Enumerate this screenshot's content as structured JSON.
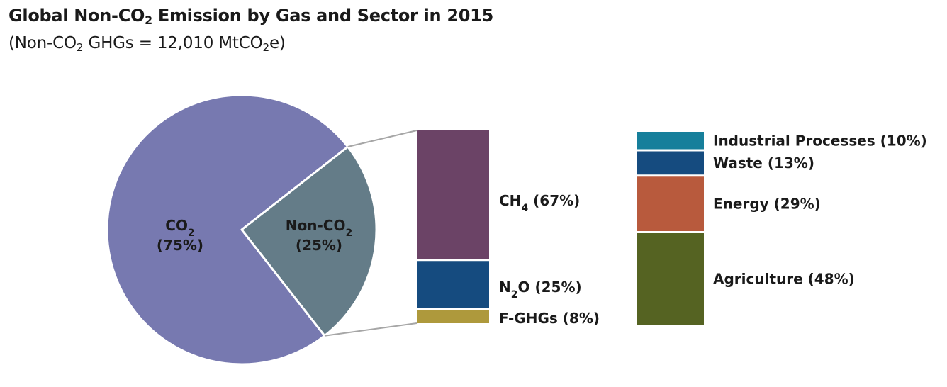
{
  "title": {
    "pre": "Global Non-CO",
    "sub": "2",
    "post": " Emission by Gas and Sector in 2015"
  },
  "subtitle": {
    "a": "(Non-CO",
    "a_sub": "2",
    "b": " GHGs = 12,010 MtCO",
    "b_sub": "2",
    "c": "e)"
  },
  "chart_data": [
    {
      "type": "pie",
      "slices": [
        {
          "name": "CO",
          "sub": "2",
          "pct_label": "(75%)",
          "value": 75,
          "color": "#7779b0"
        },
        {
          "name": "Non-CO",
          "sub": "2",
          "pct_label": "(25%)",
          "value": 25,
          "color": "#647c88"
        }
      ]
    },
    {
      "type": "bar",
      "stacked": true,
      "segments": [
        {
          "name": "CH",
          "sub": "4",
          "pct_label": " (67%)",
          "value": 67,
          "color": "#6b4366"
        },
        {
          "name": "N",
          "sub": "2",
          "post": "O",
          "pct_label": " (25%)",
          "value": 25,
          "color": "#154b7f"
        },
        {
          "name": "F-GHGs",
          "sub": "",
          "pct_label": " (8%)",
          "value": 8,
          "color": "#ae993c"
        }
      ]
    },
    {
      "type": "bar",
      "stacked": true,
      "segments": [
        {
          "name": "Industrial Processes (10%)",
          "value": 10,
          "color": "#167f9b"
        },
        {
          "name": "Waste (13%)",
          "value": 13,
          "color": "#154b7f"
        },
        {
          "name": "Energy (29%)",
          "value": 29,
          "color": "#b85a3d"
        },
        {
          "name": "Agriculture (48%)",
          "value": 48,
          "color": "#556322"
        }
      ]
    }
  ]
}
